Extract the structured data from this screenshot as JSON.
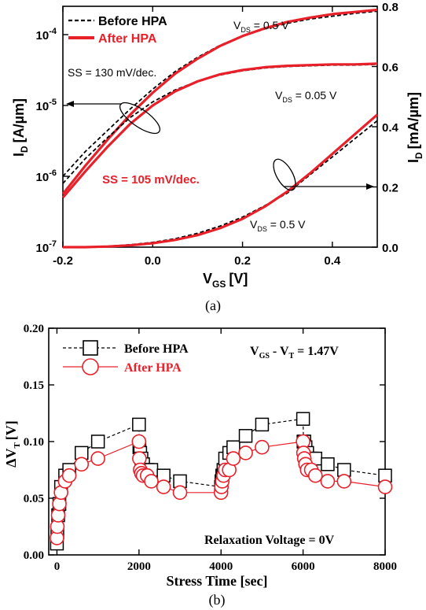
{
  "chart_data": [
    {
      "type": "line",
      "caption": "(a)",
      "xlabel": "V",
      "xlabel_sub": "GS",
      "xlabel_unit": "[V]",
      "ylabel_left": "I",
      "ylabel_left_sub": "D",
      "ylabel_left_unit": "[A/µm]",
      "ylabel_right": "I",
      "ylabel_right_sub": "D",
      "ylabel_right_unit": "[mA/µm]",
      "xlim": [
        -0.2,
        0.5
      ],
      "xticks": [
        -0.2,
        0.0,
        0.2,
        0.4
      ],
      "xtick_labels": [
        "-0.2",
        "0.0",
        "0.2",
        "0.4"
      ],
      "ylim_left_log": [
        -7,
        -3.6
      ],
      "yticks_left": [
        {
          "base": "10",
          "exp": "-7",
          "v": -7
        },
        {
          "base": "10",
          "exp": "-6",
          "v": -6
        },
        {
          "base": "10",
          "exp": "-5",
          "v": -5
        },
        {
          "base": "10",
          "exp": "-4",
          "v": -4
        }
      ],
      "ylim_right": [
        0.0,
        0.8
      ],
      "yticks_right": [
        "0.0",
        "0.2",
        "0.4",
        "0.6",
        "0.8"
      ],
      "legend": [
        {
          "label": "Before HPA",
          "style": "dashed",
          "color": "#000000"
        },
        {
          "label": "After HPA",
          "style": "solid",
          "color": "#e8202a"
        }
      ],
      "annotations": {
        "vds_top": {
          "text": "V",
          "sub": "DS",
          "rest": " = 0.5 V"
        },
        "vds_mid": {
          "text": "V",
          "sub": "DS",
          "rest": " = 0.05 V"
        },
        "vds_bottom": {
          "text": "V",
          "sub": "DS",
          "rest": " = 0.5 V"
        },
        "ss_before": "SS = 130 mV/dec.",
        "ss_after": "SS = 105 mV/dec."
      },
      "series": [
        {
          "name": "Before HPA",
          "axis": "left-log",
          "x": [
            -0.2,
            -0.15,
            -0.1,
            -0.05,
            0.0,
            0.05,
            0.1,
            0.15,
            0.2,
            0.25,
            0.3,
            0.35,
            0.4,
            0.45,
            0.5
          ],
          "y": [
            -6.0,
            -5.65,
            -5.35,
            -5.05,
            -4.77,
            -4.52,
            -4.32,
            -4.15,
            -4.02,
            -3.92,
            -3.84,
            -3.78,
            -3.74,
            -3.7,
            -3.67
          ]
        },
        {
          "name": "After HPA",
          "axis": "left-log",
          "x": [
            -0.2,
            -0.15,
            -0.1,
            -0.05,
            0.0,
            0.05,
            0.1,
            0.15,
            0.2,
            0.25,
            0.3,
            0.35,
            0.4,
            0.45,
            0.5
          ],
          "y": [
            -6.25,
            -5.85,
            -5.48,
            -5.13,
            -4.82,
            -4.55,
            -4.34,
            -4.16,
            -4.02,
            -3.91,
            -3.82,
            -3.76,
            -3.71,
            -3.68,
            -3.65
          ]
        },
        {
          "name": "Before HPA",
          "axis": "left-log",
          "x": [
            -0.2,
            -0.15,
            -0.1,
            -0.05,
            0.0,
            0.05,
            0.1,
            0.15,
            0.2,
            0.25,
            0.3,
            0.35,
            0.4,
            0.45,
            0.5
          ],
          "y": [
            -6.1,
            -5.75,
            -5.45,
            -5.17,
            -4.95,
            -4.78,
            -4.66,
            -4.57,
            -4.51,
            -4.47,
            -4.45,
            -4.44,
            -4.43,
            -4.43,
            -4.42
          ]
        },
        {
          "name": "After HPA",
          "axis": "left-log",
          "x": [
            -0.2,
            -0.15,
            -0.1,
            -0.05,
            0.0,
            0.05,
            0.1,
            0.15,
            0.2,
            0.25,
            0.3,
            0.35,
            0.4,
            0.45,
            0.5
          ],
          "y": [
            -6.3,
            -5.93,
            -5.58,
            -5.26,
            -5.0,
            -4.8,
            -4.66,
            -4.56,
            -4.5,
            -4.46,
            -4.44,
            -4.43,
            -4.42,
            -4.42,
            -4.41
          ]
        },
        {
          "name": "Before HPA",
          "axis": "right",
          "x": [
            -0.2,
            -0.15,
            -0.1,
            -0.05,
            0.0,
            0.05,
            0.1,
            0.15,
            0.2,
            0.25,
            0.3,
            0.35,
            0.4,
            0.45,
            0.5
          ],
          "y": [
            0.0,
            0.0,
            0.003,
            0.008,
            0.016,
            0.028,
            0.046,
            0.07,
            0.1,
            0.138,
            0.18,
            0.24,
            0.3,
            0.36,
            0.42
          ]
        },
        {
          "name": "After HPA",
          "axis": "right",
          "x": [
            -0.2,
            -0.15,
            -0.1,
            -0.05,
            0.0,
            0.05,
            0.1,
            0.15,
            0.2,
            0.25,
            0.3,
            0.35,
            0.4,
            0.45,
            0.5
          ],
          "y": [
            0.0,
            0.0,
            0.002,
            0.006,
            0.013,
            0.024,
            0.04,
            0.063,
            0.094,
            0.135,
            0.185,
            0.245,
            0.31,
            0.375,
            0.44
          ]
        }
      ]
    },
    {
      "type": "line",
      "caption": "(b)",
      "xlabel": "Stress Time [sec]",
      "ylabel": "ΔV",
      "ylabel_sub": "T",
      "ylabel_unit": "[V]",
      "xlim": [
        -200,
        8000
      ],
      "ylim": [
        0.0,
        0.2
      ],
      "xticks": [
        "0",
        "2000",
        "4000",
        "6000",
        "8000"
      ],
      "yticks": [
        "0.00",
        "0.05",
        "0.10",
        "0.15",
        "0.20"
      ],
      "legend": [
        {
          "label": "Before HPA",
          "marker": "square",
          "color": "#000000"
        },
        {
          "label": "After HPA",
          "marker": "circle",
          "color": "#e8202a"
        }
      ],
      "annotations": {
        "condition": {
          "a": "V",
          "a_sub": "GS",
          "mid": " - V",
          "b_sub": "T",
          "rest": " = 1.47V"
        },
        "relaxation": "Relaxation Voltage = 0V"
      },
      "series": [
        {
          "name": "Before HPA",
          "x": [
            0,
            10,
            30,
            60,
            100,
            200,
            300,
            600,
            1000,
            2000,
            2010,
            2030,
            2060,
            2100,
            2200,
            2300,
            2600,
            3000,
            4000,
            4010,
            4030,
            4060,
            4100,
            4200,
            4300,
            4600,
            5000,
            6000,
            6010,
            6030,
            6060,
            6100,
            6200,
            6300,
            6600,
            7000,
            8000
          ],
          "y": [
            0.01,
            0.02,
            0.035,
            0.045,
            0.06,
            0.07,
            0.075,
            0.09,
            0.1,
            0.115,
            0.095,
            0.09,
            0.085,
            0.08,
            0.075,
            0.075,
            0.07,
            0.065,
            0.06,
            0.065,
            0.07,
            0.075,
            0.085,
            0.09,
            0.095,
            0.105,
            0.115,
            0.12,
            0.1,
            0.1,
            0.095,
            0.09,
            0.085,
            0.085,
            0.08,
            0.075,
            0.07
          ]
        },
        {
          "name": "After HPA",
          "x": [
            0,
            10,
            30,
            60,
            100,
            200,
            300,
            600,
            1000,
            2000,
            2010,
            2030,
            2060,
            2100,
            2200,
            2300,
            2600,
            3000,
            4000,
            4010,
            4030,
            4060,
            4100,
            4200,
            4300,
            4600,
            5000,
            6000,
            6010,
            6030,
            6060,
            6100,
            6200,
            6300,
            6600,
            7000,
            8000
          ],
          "y": [
            0.015,
            0.025,
            0.035,
            0.045,
            0.055,
            0.065,
            0.07,
            0.08,
            0.085,
            0.1,
            0.085,
            0.075,
            0.072,
            0.07,
            0.07,
            0.065,
            0.06,
            0.055,
            0.055,
            0.06,
            0.065,
            0.07,
            0.075,
            0.075,
            0.085,
            0.09,
            0.095,
            0.1,
            0.09,
            0.085,
            0.08,
            0.075,
            0.075,
            0.07,
            0.065,
            0.065,
            0.06
          ]
        }
      ]
    }
  ]
}
